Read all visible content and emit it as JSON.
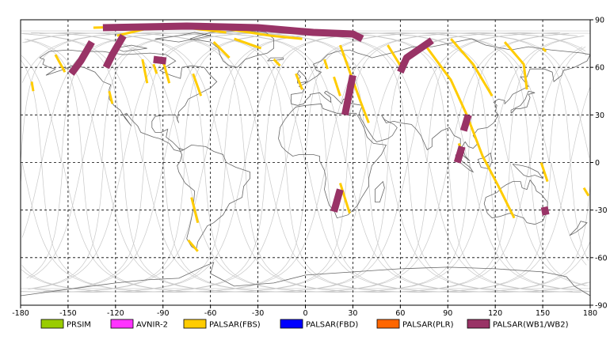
{
  "chart_data": {
    "type": "map",
    "projection": "equirectangular",
    "xlim": [
      -180,
      180
    ],
    "ylim": [
      -90,
      90
    ],
    "x_ticks": [
      "-180",
      "-150",
      "-120",
      "-90",
      "-60",
      "-30",
      "0",
      "30",
      "60",
      "90",
      "120",
      "150",
      "180"
    ],
    "y_ticks": [
      "90",
      "60",
      "30",
      "0",
      "-30",
      "-60",
      "-90"
    ],
    "grid": true,
    "legend_position": "bottom",
    "legend": [
      {
        "label": "PRSIM",
        "color": "#99cc00"
      },
      {
        "label": "AVNIR-2",
        "color": "#ff33ff"
      },
      {
        "label": "PALSAR(FBS)",
        "color": "#ffcc00"
      },
      {
        "label": "PALSAR(FBD)",
        "color": "#0000ff"
      },
      {
        "label": "PALSAR(PLR)",
        "color": "#ff6600"
      },
      {
        "label": "PALSAR(WB1/WB2)",
        "color": "#993366"
      }
    ],
    "scenes": [
      {
        "sensor": "PALSAR(FBS)",
        "path": [
          [
            -134,
            85
          ],
          [
            -92,
            86
          ],
          [
            -55,
            85
          ],
          [
            -22,
            80
          ],
          [
            -2,
            78
          ]
        ]
      },
      {
        "sensor": "PALSAR(FBS)",
        "path": [
          [
            -119,
            80
          ],
          [
            -102,
            84
          ],
          [
            -75,
            85
          ],
          [
            -50,
            82
          ]
        ]
      },
      {
        "sensor": "PALSAR(FBS)",
        "path": [
          [
            -158,
            68
          ],
          [
            -152,
            57
          ]
        ]
      },
      {
        "sensor": "PALSAR(FBS)",
        "path": [
          [
            -173,
            51
          ],
          [
            -172,
            45
          ]
        ]
      },
      {
        "sensor": "PALSAR(FBS)",
        "path": [
          [
            -103,
            65
          ],
          [
            -100,
            50
          ]
        ]
      },
      {
        "sensor": "PALSAR(FBS)",
        "path": [
          [
            -90,
            64
          ],
          [
            -86,
            50
          ]
        ]
      },
      {
        "sensor": "PALSAR(FBS)",
        "path": [
          [
            -71,
            56
          ],
          [
            -66,
            42
          ]
        ]
      },
      {
        "sensor": "PALSAR(FBS)",
        "path": [
          [
            -124,
            45
          ],
          [
            -122,
            37
          ]
        ]
      },
      {
        "sensor": "PALSAR(FBS)",
        "path": [
          [
            -58,
            76
          ],
          [
            -48,
            66
          ]
        ]
      },
      {
        "sensor": "PALSAR(FBS)",
        "path": [
          [
            -45,
            78
          ],
          [
            -28,
            72
          ]
        ]
      },
      {
        "sensor": "PALSAR(FBS)",
        "path": [
          [
            -20,
            65
          ],
          [
            -16,
            61
          ]
        ]
      },
      {
        "sensor": "PALSAR(FBS)",
        "path": [
          [
            -6,
            56
          ],
          [
            -2,
            46
          ]
        ]
      },
      {
        "sensor": "PALSAR(FBS)",
        "path": [
          [
            12,
            65
          ],
          [
            14,
            59
          ]
        ]
      },
      {
        "sensor": "PALSAR(FBS)",
        "path": [
          [
            22,
            74
          ],
          [
            35,
            38
          ],
          [
            40,
            25
          ]
        ]
      },
      {
        "sensor": "PALSAR(FBS)",
        "path": [
          [
            -72,
            -22
          ],
          [
            -68,
            -38
          ]
        ]
      },
      {
        "sensor": "PALSAR(FBS)",
        "path": [
          [
            -74,
            -49
          ],
          [
            -68,
            -56
          ]
        ]
      },
      {
        "sensor": "PALSAR(FBS)",
        "path": [
          [
            22,
            -13
          ],
          [
            28,
            -32
          ]
        ]
      },
      {
        "sensor": "PALSAR(FBS)",
        "path": [
          [
            52,
            74
          ],
          [
            62,
            58
          ]
        ]
      },
      {
        "sensor": "PALSAR(FBS)",
        "path": [
          [
            75,
            75
          ],
          [
            92,
            52
          ],
          [
            102,
            30
          ],
          [
            112,
            4
          ],
          [
            122,
            -15
          ],
          [
            132,
            -35
          ]
        ]
      },
      {
        "sensor": "PALSAR(FBS)",
        "path": [
          [
            92,
            78
          ],
          [
            106,
            62
          ],
          [
            118,
            42
          ]
        ]
      },
      {
        "sensor": "PALSAR(FBS)",
        "path": [
          [
            126,
            76
          ],
          [
            138,
            62
          ],
          [
            140,
            46
          ]
        ]
      },
      {
        "sensor": "PALSAR(FBS)",
        "path": [
          [
            150,
            72
          ],
          [
            152,
            70
          ]
        ]
      },
      {
        "sensor": "PALSAR(FBS)",
        "path": [
          [
            149,
            0
          ],
          [
            153,
            -12
          ]
        ]
      },
      {
        "sensor": "PALSAR(FBS)",
        "path": [
          [
            176,
            -16
          ],
          [
            179,
            -21
          ]
        ]
      },
      {
        "sensor": "PALSAR(FBS)",
        "path": [
          [
            97,
            12
          ],
          [
            99,
            6
          ]
        ]
      },
      {
        "sensor": "PALSAR(FBS)",
        "path": [
          [
            18,
            54
          ],
          [
            22,
            42
          ]
        ]
      },
      {
        "sensor": "PALSAR(FBS)",
        "path": [
          [
            -96,
            62
          ],
          [
            -94,
            56
          ]
        ]
      },
      {
        "sensor": "PALSAR(WB1/WB2)",
        "path": [
          [
            -128,
            85
          ],
          [
            -75,
            86
          ],
          [
            -30,
            85
          ],
          [
            5,
            82
          ],
          [
            30,
            81
          ],
          [
            36,
            78
          ]
        ]
      },
      {
        "sensor": "PALSAR(WB1/WB2)",
        "path": [
          [
            -135,
            76
          ],
          [
            -142,
            64
          ],
          [
            -148,
            56
          ]
        ]
      },
      {
        "sensor": "PALSAR(WB1/WB2)",
        "path": [
          [
            -115,
            80
          ],
          [
            -122,
            68
          ],
          [
            -126,
            60
          ]
        ]
      },
      {
        "sensor": "PALSAR(WB1/WB2)",
        "path": [
          [
            -96,
            65
          ],
          [
            -88,
            64
          ]
        ]
      },
      {
        "sensor": "PALSAR(WB1/WB2)",
        "path": [
          [
            30,
            55
          ],
          [
            25,
            30
          ]
        ]
      },
      {
        "sensor": "PALSAR(WB1/WB2)",
        "path": [
          [
            22,
            -17
          ],
          [
            18,
            -31
          ]
        ]
      },
      {
        "sensor": "PALSAR(WB1/WB2)",
        "path": [
          [
            80,
            77
          ],
          [
            64,
            66
          ],
          [
            60,
            57
          ]
        ]
      },
      {
        "sensor": "PALSAR(WB1/WB2)",
        "path": [
          [
            103,
            30
          ],
          [
            100,
            20
          ]
        ]
      },
      {
        "sensor": "PALSAR(WB1/WB2)",
        "path": [
          [
            99,
            10
          ],
          [
            96,
            0
          ]
        ]
      },
      {
        "sensor": "PALSAR(WB1/WB2)",
        "path": [
          [
            151,
            -28
          ],
          [
            152,
            -33
          ]
        ]
      }
    ]
  }
}
